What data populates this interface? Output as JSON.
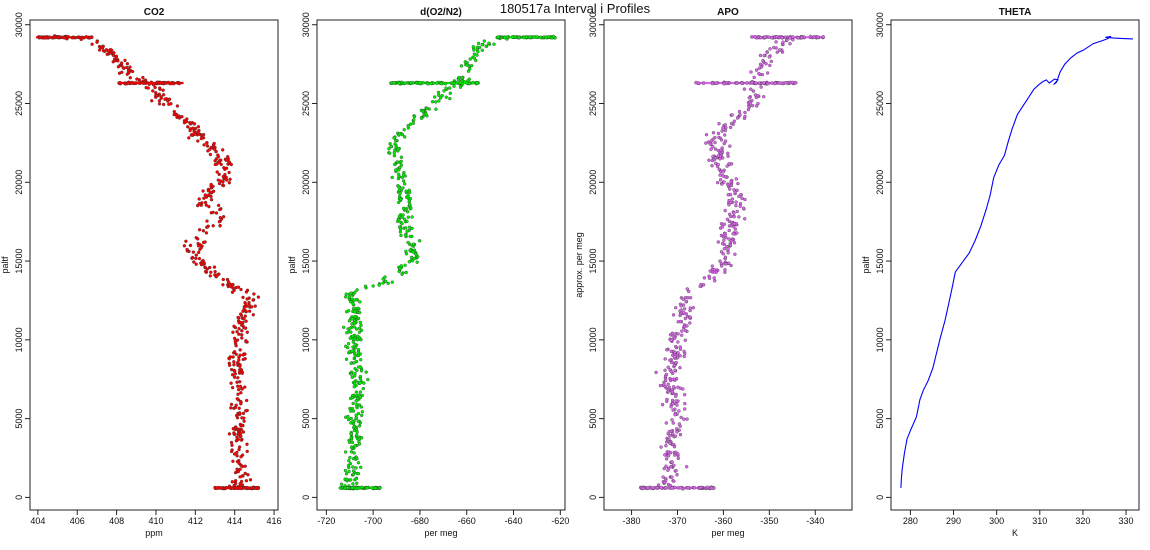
{
  "figure": {
    "title": "180517a   Interval i Profiles"
  },
  "chart_data": [
    {
      "type": "scatter",
      "title": "CO2",
      "xlabel": "ppm",
      "ylabel": "paltf",
      "xlim": [
        403.6,
        416.2
      ],
      "ylim": [
        -800,
        30300
      ],
      "xticks": [
        404,
        406,
        408,
        410,
        412,
        414,
        416
      ],
      "yticks": [
        0,
        5000,
        10000,
        15000,
        20000,
        25000,
        30000
      ],
      "grid": false,
      "color": "#ff0000",
      "profile": [
        [
          405,
          29200
        ],
        [
          406.4,
          29100
        ],
        [
          407.3,
          28500
        ],
        [
          408.2,
          27700
        ],
        [
          408.9,
          26600
        ],
        [
          409.8,
          26300
        ],
        [
          410.3,
          25200
        ],
        [
          411.5,
          24000
        ],
        [
          412.4,
          22600
        ],
        [
          413.2,
          21700
        ],
        [
          413.5,
          20200
        ],
        [
          412.7,
          19500
        ],
        [
          412.4,
          18800
        ],
        [
          413.3,
          17800
        ],
        [
          412.2,
          16500
        ],
        [
          411.8,
          15300
        ],
        [
          412.6,
          14500
        ],
        [
          413.6,
          13600
        ],
        [
          415.0,
          12600
        ],
        [
          414.3,
          11000
        ],
        [
          414.2,
          9000
        ],
        [
          414.1,
          7000
        ],
        [
          414.2,
          5000
        ],
        [
          414.1,
          3000
        ],
        [
          414.3,
          1500
        ],
        [
          414.2,
          600
        ]
      ],
      "bursts": [
        [
          403.9,
          406.8,
          29200
        ],
        [
          408.1,
          411.4,
          26300
        ],
        [
          413.0,
          415.2,
          600
        ]
      ],
      "scatter_width": 0.7
    },
    {
      "type": "scatter",
      "title": "d(O2/N2)",
      "xlabel": "per meg",
      "ylabel": "paltf",
      "xlim": [
        -724,
        -618
      ],
      "ylim": [
        -800,
        30300
      ],
      "xticks": [
        -720,
        -700,
        -680,
        -660,
        -640,
        -620
      ],
      "yticks": [
        0,
        5000,
        10000,
        15000,
        20000,
        25000,
        30000
      ],
      "grid": false,
      "color": "#00ee00",
      "profile": [
        [
          -640,
          29200
        ],
        [
          -652,
          28800
        ],
        [
          -657,
          28200
        ],
        [
          -660,
          27300
        ],
        [
          -663,
          26300
        ],
        [
          -670,
          25500
        ],
        [
          -675,
          24800
        ],
        [
          -686,
          23500
        ],
        [
          -692,
          22000
        ],
        [
          -689,
          20800
        ],
        [
          -688,
          19500
        ],
        [
          -685,
          18500
        ],
        [
          -688,
          17500
        ],
        [
          -684,
          16300
        ],
        [
          -683,
          15200
        ],
        [
          -689,
          14300
        ],
        [
          -695,
          13600
        ],
        [
          -710,
          13000
        ],
        [
          -708,
          11500
        ],
        [
          -708,
          9500
        ],
        [
          -706,
          7500
        ],
        [
          -708,
          5500
        ],
        [
          -708,
          3500
        ],
        [
          -709,
          2000
        ],
        [
          -710,
          600
        ]
      ],
      "bursts": [
        [
          -647,
          -622,
          29200
        ],
        [
          -693,
          -655,
          26300
        ],
        [
          -714,
          -697,
          600
        ]
      ],
      "scatter_width": 5
    },
    {
      "type": "scatter",
      "title": "APO",
      "xlabel": "per meg",
      "ylabel": "approx. per meg",
      "xlim": [
        -386,
        -332
      ],
      "ylim": [
        -800,
        30300
      ],
      "xticks": [
        -380,
        -370,
        -360,
        -350,
        -340
      ],
      "yticks": [
        0,
        5000,
        10000,
        15000,
        20000,
        25000,
        30000
      ],
      "grid": false,
      "color": "#dd66ee",
      "profile": [
        [
          -346,
          29200
        ],
        [
          -350,
          28000
        ],
        [
          -353,
          26300
        ],
        [
          -354,
          24800
        ],
        [
          -362,
          23000
        ],
        [
          -360,
          21000
        ],
        [
          -358,
          19500
        ],
        [
          -358,
          18000
        ],
        [
          -359,
          16500
        ],
        [
          -359,
          15000
        ],
        [
          -365,
          13600
        ],
        [
          -368,
          12500
        ],
        [
          -369,
          11000
        ],
        [
          -370,
          9500
        ],
        [
          -372,
          8000
        ],
        [
          -371,
          6500
        ],
        [
          -370,
          5000
        ],
        [
          -372,
          3500
        ],
        [
          -371,
          2000
        ],
        [
          -372,
          600
        ]
      ],
      "bursts": [
        [
          -354,
          -338,
          29200
        ],
        [
          -366,
          -344,
          26300
        ],
        [
          -378,
          -362,
          600
        ]
      ],
      "scatter_width": 3.5
    },
    {
      "type": "line",
      "title": "THETA",
      "xlabel": "K",
      "ylabel": "paltf",
      "xlim": [
        275.5,
        333
      ],
      "ylim": [
        -800,
        30300
      ],
      "xticks": [
        280,
        290,
        300,
        310,
        320,
        330
      ],
      "yticks": [
        0,
        5000,
        10000,
        15000,
        20000,
        25000,
        30000
      ],
      "grid": false,
      "color": "#0000ff",
      "x": [
        277.8,
        277.9,
        278.1,
        278.6,
        279.2,
        280.1,
        281.4,
        282.2,
        283.0,
        284.1,
        285.2,
        286.1,
        287.0,
        288.0,
        288.8,
        289.6,
        290.4,
        292.0,
        293.6,
        295.0,
        296.3,
        297.6,
        298.5,
        299.3,
        300.5,
        301.8,
        302.7,
        303.6,
        304.8,
        306.0,
        307.2,
        308.6,
        309.8,
        310.8,
        311.5,
        312.2,
        313.4,
        314.2,
        313.2,
        313.9,
        314.7,
        315.8,
        317.2,
        318.6,
        320.2,
        322.4,
        324.6,
        325.6,
        326.5,
        325.2,
        327.2,
        329.5,
        331.6
      ],
      "y": [
        600,
        1200,
        1800,
        2800,
        3700,
        4300,
        5100,
        6200,
        6800,
        7400,
        8200,
        9200,
        10200,
        11200,
        12200,
        13200,
        14300,
        14900,
        15500,
        16300,
        17200,
        18300,
        19200,
        20300,
        21100,
        21700,
        22600,
        23400,
        24300,
        24800,
        25300,
        25900,
        26200,
        26400,
        26500,
        26300,
        26550,
        26500,
        26200,
        26350,
        27000,
        27500,
        27900,
        28200,
        28400,
        28800,
        29000,
        29100,
        29250,
        29200,
        29150,
        29120,
        29100
      ]
    }
  ]
}
